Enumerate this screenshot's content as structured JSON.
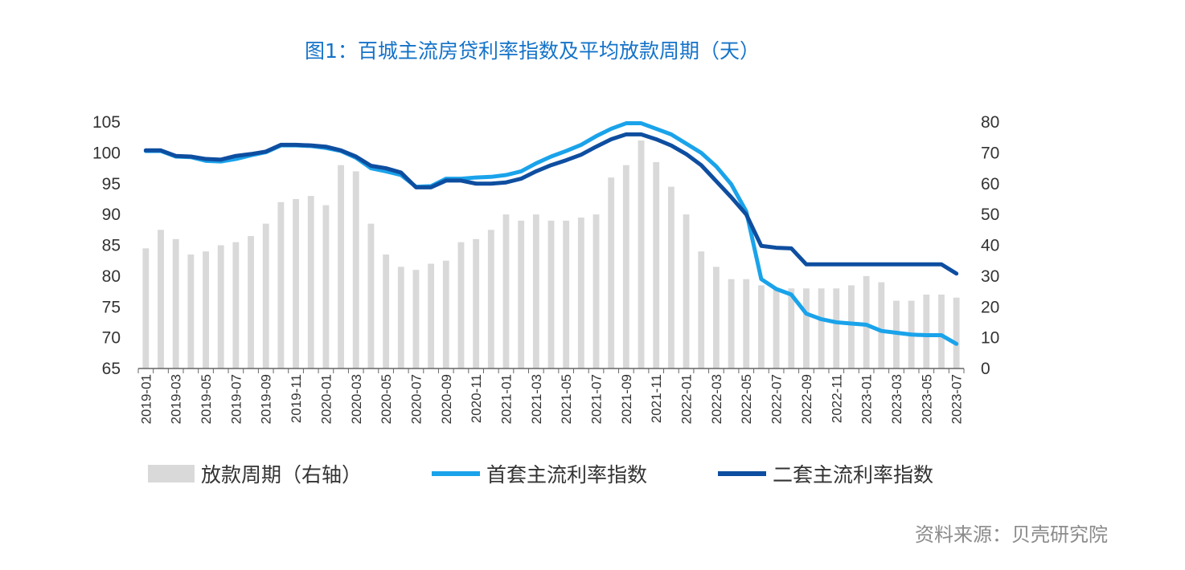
{
  "title": "图1：百城主流房贷利率指数及平均放款周期（天）",
  "source": "资料来源：贝壳研究院",
  "colors": {
    "bars": "#d9d9d9",
    "first_home": "#1aa3ea",
    "second_home": "#0e4ea0",
    "title": "#1473c9"
  },
  "chart_data": {
    "type": "bar+line",
    "x": [
      "2019-01",
      "2019-02",
      "2019-03",
      "2019-04",
      "2019-05",
      "2019-06",
      "2019-07",
      "2019-08",
      "2019-09",
      "2019-10",
      "2019-11",
      "2019-12",
      "2020-01",
      "2020-02",
      "2020-03",
      "2020-04",
      "2020-05",
      "2020-06",
      "2020-07",
      "2020-08",
      "2020-09",
      "2020-10",
      "2020-11",
      "2020-12",
      "2021-01",
      "2021-02",
      "2021-03",
      "2021-04",
      "2021-05",
      "2021-06",
      "2021-07",
      "2021-08",
      "2021-09",
      "2021-10",
      "2021-11",
      "2021-12",
      "2022-01",
      "2022-02",
      "2022-03",
      "2022-04",
      "2022-05",
      "2022-06",
      "2022-07",
      "2022-08",
      "2022-09",
      "2022-10",
      "2022-11",
      "2022-12",
      "2023-01",
      "2023-02",
      "2023-03",
      "2023-04",
      "2023-05",
      "2023-06",
      "2023-07"
    ],
    "x_tick_labels": [
      "2019-01",
      "2019-03",
      "2019-05",
      "2019-07",
      "2019-09",
      "2019-11",
      "2020-01",
      "2020-03",
      "2020-05",
      "2020-07",
      "2020-09",
      "2020-11",
      "2021-01",
      "2021-03",
      "2021-05",
      "2021-07",
      "2021-09",
      "2021-11",
      "2022-01",
      "2022-03",
      "2022-05",
      "2022-07",
      "2022-09",
      "2022-11",
      "2023-01",
      "2023-03",
      "2023-05",
      "2023-07"
    ],
    "y_left": {
      "lim": [
        65,
        105
      ],
      "ticks": [
        "65",
        "70",
        "75",
        "80",
        "85",
        "90",
        "95",
        "100",
        "105"
      ]
    },
    "y_right": {
      "lim": [
        0,
        80
      ],
      "ticks": [
        "0",
        "10",
        "20",
        "30",
        "40",
        "50",
        "60",
        "70",
        "80"
      ]
    },
    "series": [
      {
        "name": "放款周期（右轴）",
        "type": "bar",
        "axis": "right",
        "values": [
          39,
          45,
          42,
          37,
          38,
          40,
          41,
          43,
          47,
          54,
          55,
          56,
          53,
          66,
          64,
          47,
          37,
          33,
          32,
          34,
          35,
          41,
          42,
          45,
          50,
          48,
          50,
          48,
          48,
          49,
          50,
          62,
          66,
          74,
          67,
          59,
          50,
          38,
          33,
          29,
          29,
          27,
          26,
          26,
          26,
          26,
          26,
          27,
          30,
          28,
          22,
          22,
          24,
          24,
          23
        ]
      },
      {
        "name": "首套主流利率指数",
        "type": "line",
        "axis": "left",
        "values": [
          100.3,
          100.3,
          99.4,
          99.3,
          98.7,
          98.6,
          99.0,
          99.6,
          100.1,
          101.2,
          101.2,
          101.1,
          100.8,
          100.3,
          99.2,
          97.5,
          97.0,
          96.4,
          94.5,
          94.6,
          95.8,
          95.8,
          96.0,
          96.1,
          96.4,
          97.0,
          98.3,
          99.4,
          100.3,
          101.3,
          102.7,
          103.9,
          104.8,
          104.8,
          103.9,
          103.0,
          101.5,
          100.0,
          97.8,
          94.9,
          90.5,
          79.5,
          77.9,
          77.0,
          73.9,
          73.0,
          72.5,
          72.3,
          72.1,
          71.1,
          70.8,
          70.5,
          70.4,
          70.4,
          69.0
        ]
      },
      {
        "name": "二套主流利率指数",
        "type": "line",
        "axis": "left",
        "values": [
          100.4,
          100.4,
          99.5,
          99.4,
          99.0,
          98.9,
          99.5,
          99.8,
          100.2,
          101.3,
          101.3,
          101.2,
          101.0,
          100.4,
          99.4,
          97.9,
          97.5,
          96.8,
          94.4,
          94.4,
          95.5,
          95.5,
          95.0,
          95.0,
          95.2,
          95.8,
          97.0,
          98.0,
          98.8,
          99.7,
          101.0,
          102.2,
          103.0,
          103.0,
          102.2,
          101.2,
          99.8,
          98.0,
          95.4,
          92.8,
          90.0,
          84.9,
          84.6,
          84.5,
          81.9,
          81.9,
          81.9,
          81.9,
          81.9,
          81.9,
          81.9,
          81.9,
          81.9,
          81.9,
          80.4
        ]
      }
    ],
    "legend": {
      "position": "bottom",
      "entries": [
        "放款周期（右轴）",
        "首套主流利率指数",
        "二套主流利率指数"
      ]
    }
  }
}
